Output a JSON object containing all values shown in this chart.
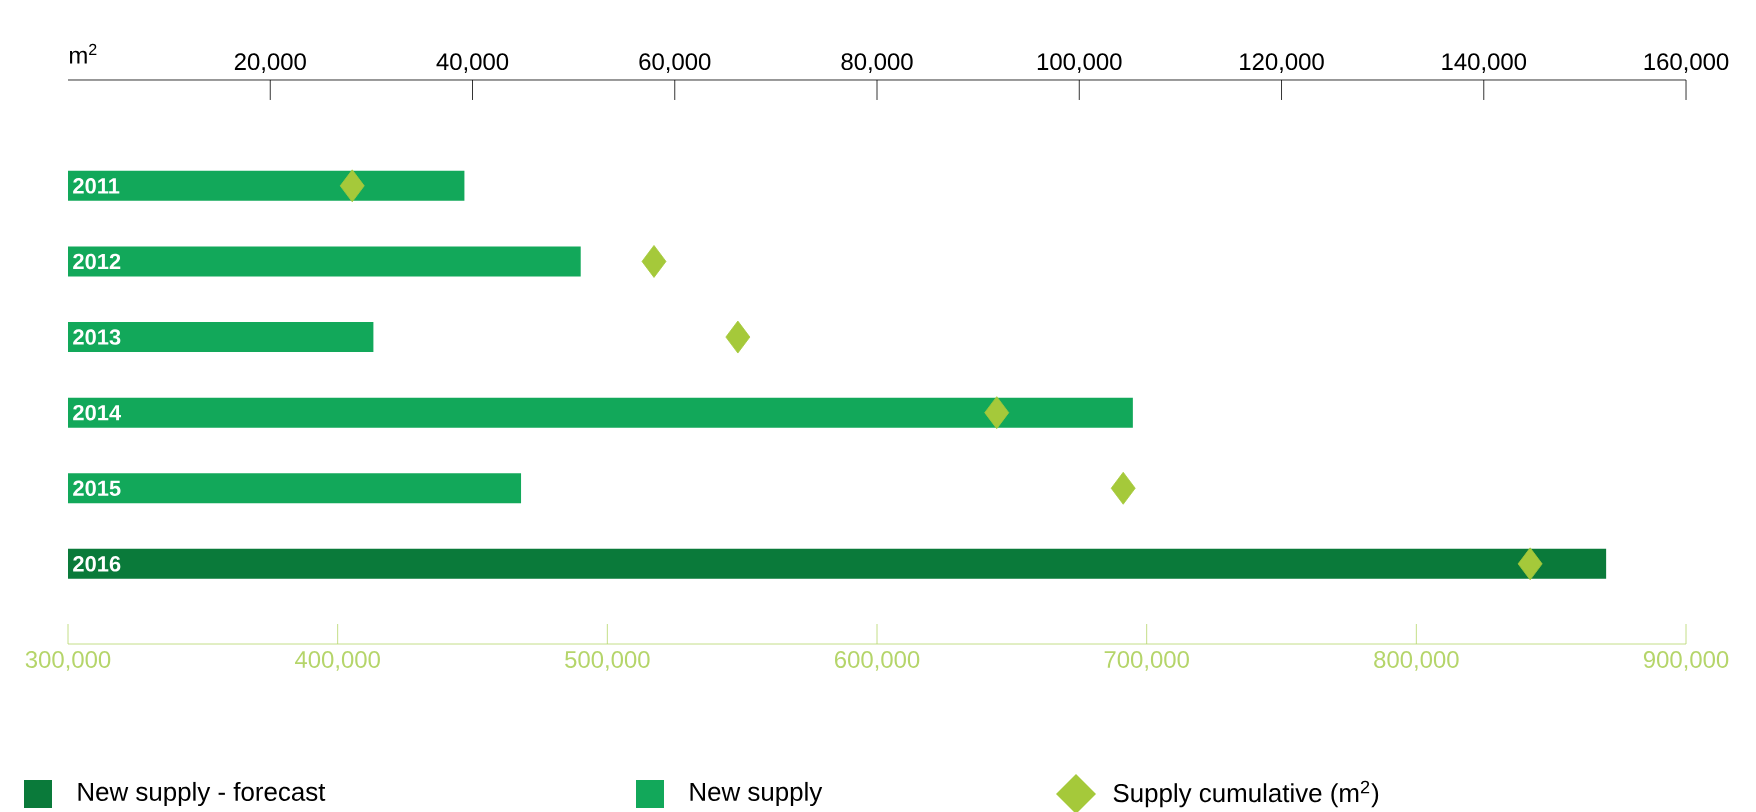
{
  "chart_data": {
    "type": "bar",
    "orientation": "horizontal",
    "categories": [
      "2011",
      "2012",
      "2013",
      "2014",
      "2015",
      "2016"
    ],
    "x2label": "m$^{2}$",
    "x2lim": [
      0,
      160000
    ],
    "x2ticks": [
      {
        "value": 20000,
        "label": "20,000"
      },
      {
        "value": 40000,
        "label": "40,000"
      },
      {
        "value": 60000,
        "label": "60,000"
      },
      {
        "value": 80000,
        "label": "80,000"
      },
      {
        "value": 100000,
        "label": "100,000"
      },
      {
        "value": 120000,
        "label": "120,000"
      },
      {
        "value": 140000,
        "label": "140,000"
      },
      {
        "value": 160000,
        "label": "160,000"
      }
    ],
    "xlim": [
      300000,
      900000
    ],
    "xticks": [
      {
        "value": 300000,
        "label": "300,000"
      },
      {
        "value": 400000,
        "label": "400,000"
      },
      {
        "value": 500000,
        "label": "500,000"
      },
      {
        "value": 600000,
        "label": "600,000"
      },
      {
        "value": 700000,
        "label": "700,000"
      },
      {
        "value": 800000,
        "label": "800,000"
      },
      {
        "value": 900000,
        "label": "900,000"
      }
    ],
    "legend": "bottom",
    "series": [
      {
        "name": "New supply - forecast",
        "color": "#0a7a3a",
        "axis": "x2",
        "values": [
          null,
          null,
          null,
          null,
          null,
          152100
        ]
      },
      {
        "name": "New supply",
        "color": "#12a85a",
        "axis": "x2",
        "values": [
          39200,
          50700,
          30200,
          105300,
          44800,
          null
        ]
      },
      {
        "name": "Supply cumulative (m$^{2}$)",
        "type": "scatter",
        "marker": "diamond",
        "color": "#a5c93a",
        "values": [
          405400,
          517300,
          548400,
          644400,
          691300,
          842200
        ]
      }
    ]
  }
}
